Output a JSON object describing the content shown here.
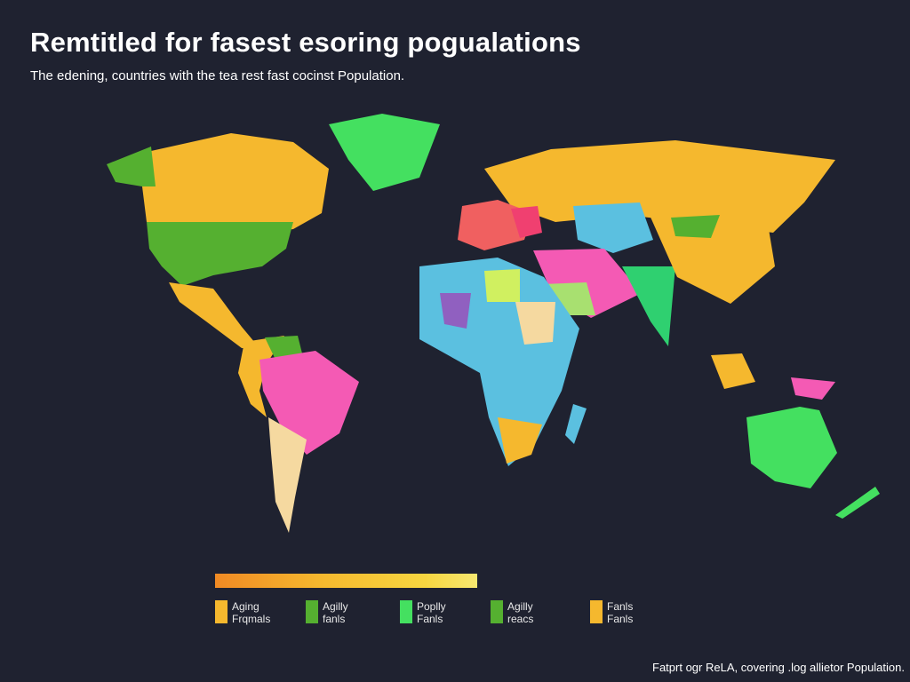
{
  "header": {
    "title": "Remtitled for fasest esoring pogualations",
    "subtitle": "The edening, countries with the tea rest fast cocinst Population."
  },
  "legend": {
    "items": [
      {
        "line1": "Aging",
        "line2": "Frqmals",
        "color": "#f5b82e"
      },
      {
        "line1": "Agilly",
        "line2": "fanls",
        "color": "#55b030"
      },
      {
        "line1": "Poplly",
        "line2": "Fanls",
        "color": "#44e060"
      },
      {
        "line1": "Agilly",
        "line2": "reacs",
        "color": "#55b030"
      },
      {
        "line1": "Fanls",
        "line2": "Fanls",
        "color": "#f5b82e"
      }
    ]
  },
  "footer": "Fatprt ogr ReLA, covering .log allietor Population."
}
